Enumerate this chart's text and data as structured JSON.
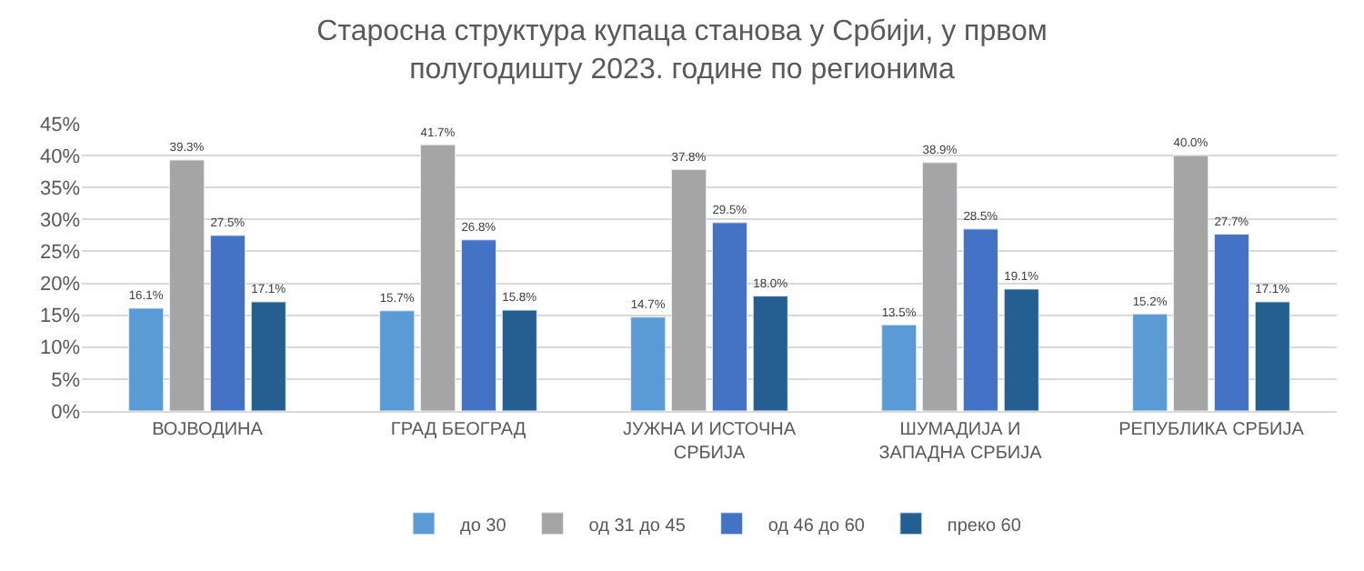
{
  "chart_data": {
    "type": "bar",
    "title": "Старосна структура купаца станова у Србији, у првом полугодишту 2023. године по регионима",
    "categories": [
      "ВОЈВОДИНА",
      "ГРАД БЕОГРАД",
      "ЈУЖНА И ИСТОЧНА СРБИЈА",
      "ШУМАДИЈА И ЗАПАДНА СРБИЈА",
      "РЕПУБЛИКА СРБИЈА"
    ],
    "series": [
      {
        "name": "до 30",
        "color": "#5b9bd5",
        "values": [
          16.1,
          15.7,
          14.7,
          13.5,
          15.2
        ],
        "value_labels": [
          "16.1%",
          "15.7%",
          "14.7%",
          "13.5%",
          "15.2%"
        ]
      },
      {
        "name": "од 31 до 45",
        "color": "#a5a5a5",
        "values": [
          39.3,
          41.7,
          37.8,
          38.9,
          40.0
        ],
        "value_labels": [
          "39.3%",
          "41.7%",
          "37.8%",
          "38.9%",
          "40.0%"
        ]
      },
      {
        "name": "од 46 до 60",
        "color": "#4472c4",
        "values": [
          27.5,
          26.8,
          29.5,
          28.5,
          27.7
        ],
        "value_labels": [
          "27.5%",
          "26.8%",
          "29.5%",
          "28.5%",
          "27.7%"
        ]
      },
      {
        "name": "преко 60",
        "color": "#255e91",
        "values": [
          17.1,
          15.8,
          18.0,
          19.1,
          17.1
        ],
        "value_labels": [
          "17.1%",
          "15.8%",
          "18.0%",
          "19.1%",
          "17.1%"
        ]
      }
    ],
    "ylim": [
      0,
      45
    ],
    "yticks": [
      {
        "value": 0,
        "label": "0%"
      },
      {
        "value": 5,
        "label": "5%"
      },
      {
        "value": 10,
        "label": "10%"
      },
      {
        "value": 15,
        "label": "15%"
      },
      {
        "value": 20,
        "label": "20%"
      },
      {
        "value": 25,
        "label": "25%"
      },
      {
        "value": 30,
        "label": "30%"
      },
      {
        "value": 35,
        "label": "35%"
      },
      {
        "value": 40,
        "label": "40%"
      },
      {
        "value": 45,
        "label": "45%"
      }
    ],
    "grid": "y",
    "legend": "bottom"
  }
}
